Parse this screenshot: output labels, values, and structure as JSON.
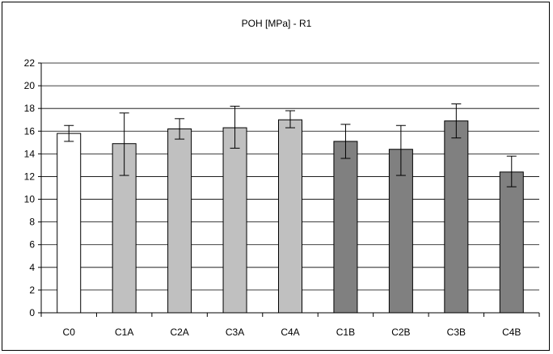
{
  "chart_data": {
    "type": "bar",
    "title": "POH [MPa] - R1",
    "xlabel": "",
    "ylabel": "",
    "categories": [
      "C0",
      "C1A",
      "C2A",
      "C3A",
      "C4A",
      "C1B",
      "C2B",
      "C3B",
      "C4B"
    ],
    "values": [
      15.8,
      14.9,
      16.2,
      16.3,
      17.0,
      15.1,
      14.4,
      16.9,
      12.4
    ],
    "error_low": [
      15.1,
      12.1,
      15.3,
      14.5,
      16.3,
      13.6,
      12.1,
      15.4,
      11.1
    ],
    "error_high": [
      16.5,
      17.6,
      17.1,
      18.2,
      17.8,
      16.6,
      16.5,
      18.4,
      13.8
    ],
    "bar_colors": [
      "#ffffff",
      "#c0c0c0",
      "#c0c0c0",
      "#c0c0c0",
      "#c0c0c0",
      "#808080",
      "#808080",
      "#808080",
      "#808080"
    ],
    "ylim": [
      0,
      22
    ],
    "yticks": [
      0,
      2,
      4,
      6,
      8,
      10,
      12,
      14,
      16,
      18,
      20,
      22
    ],
    "grid": true,
    "legend": "none"
  }
}
